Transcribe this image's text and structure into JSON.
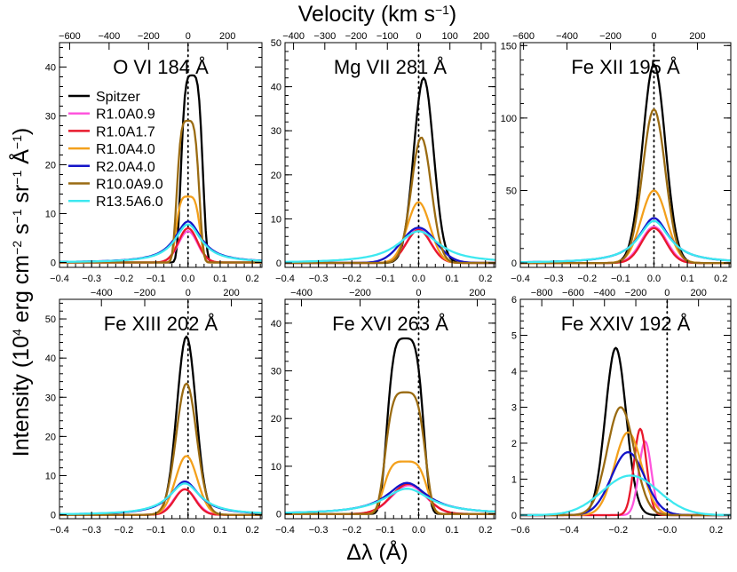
{
  "labels": {
    "top_title": "Velocity (km s",
    "top_title_sup": "−1",
    "top_title_end": ")",
    "ylabel_pre": "Intensity (10",
    "ylabel_sup1": "4",
    "ylabel_mid1": " erg cm",
    "ylabel_sup2": "−2",
    "ylabel_mid2": " s",
    "ylabel_sup3": "−1",
    "ylabel_mid3": " sr",
    "ylabel_sup4": "−1",
    "ylabel_mid4": " Å",
    "ylabel_sup5": "−1",
    "ylabel_end": ")",
    "xlabel": "Δλ (Å)"
  },
  "legend": [
    {
      "name": "Spitzer",
      "color": "#000000"
    },
    {
      "name": "R1.0A0.9",
      "color": "#ff55dd"
    },
    {
      "name": "R1.0A1.7",
      "color": "#e8192c"
    },
    {
      "name": "R1.0A4.0",
      "color": "#f3a01c"
    },
    {
      "name": "R2.0A4.0",
      "color": "#1414c8"
    },
    {
      "name": "R10.0A9.0",
      "color": "#9a6b12"
    },
    {
      "name": "R13.5A6.0",
      "color": "#3de8f0"
    }
  ],
  "chart_data": [
    {
      "type": "line",
      "title": "O VI 184 Å",
      "xlim": [
        -0.4,
        0.23
      ],
      "ylim": [
        -1,
        45
      ],
      "xticks": [
        -0.4,
        -0.3,
        -0.2,
        -0.1,
        0.0,
        0.1,
        0.2
      ],
      "xtick_labels": [
        "−0.4",
        "−0.3",
        "−0.2",
        "−0.1",
        "0.0",
        "0.1",
        "0.2"
      ],
      "yticks": [
        0,
        10,
        20,
        30,
        40
      ],
      "ytick_labels": [
        "0",
        "10",
        "20",
        "30",
        "40"
      ],
      "vel_ticks": [
        -600,
        -400,
        -200,
        0,
        200
      ],
      "vel_tick_labels": [
        "−600",
        "−400",
        "−200",
        "0",
        "200"
      ],
      "lambda0": 184.1,
      "profiles": [
        {
          "name": "Spitzer",
          "color": "#000000",
          "type": "flat",
          "center": 0.012,
          "height": 38.3,
          "fwhm": 0.068
        },
        {
          "name": "R1.0A0.9",
          "color": "#ff55dd",
          "type": "gauss",
          "center": 0.0,
          "height": 6.4,
          "fwhm": 0.07
        },
        {
          "name": "R1.0A1.7",
          "color": "#e8192c",
          "type": "gauss",
          "center": 0.0,
          "height": 7.0,
          "fwhm": 0.07
        },
        {
          "name": "R1.0A4.0",
          "color": "#f3a01c",
          "type": "flat",
          "center": 0.0,
          "height": 13.5,
          "fwhm": 0.075
        },
        {
          "name": "R2.0A4.0",
          "color": "#1414c8",
          "type": "lorentz",
          "center": 0.0,
          "height": 8.4,
          "fwhm": 0.1
        },
        {
          "name": "R10.0A9.0",
          "color": "#9a6b12",
          "type": "flat",
          "center": 0.0,
          "height": 29.0,
          "fwhm": 0.07
        },
        {
          "name": "R13.5A6.0",
          "color": "#3de8f0",
          "type": "lorentz",
          "center": 0.0,
          "height": 7.8,
          "fwhm": 0.1
        }
      ]
    },
    {
      "type": "line",
      "title": "Mg VII 281 Å",
      "xlim": [
        -0.4,
        0.23
      ],
      "ylim": [
        -1,
        50
      ],
      "xticks": [
        -0.4,
        -0.3,
        -0.2,
        -0.1,
        0.0,
        0.1,
        0.2
      ],
      "xtick_labels": [
        "−0.4",
        "−0.3",
        "−0.2",
        "−0.1",
        "0.0",
        "0.1",
        "0.2"
      ],
      "yticks": [
        0,
        10,
        20,
        30,
        40,
        50
      ],
      "ytick_labels": [
        "0",
        "10",
        "20",
        "30",
        "40",
        "50"
      ],
      "vel_ticks": [
        -400,
        -300,
        -200,
        -100,
        0,
        100,
        200
      ],
      "vel_tick_labels": [
        "−400",
        "−300",
        "−200",
        "−100",
        "0",
        "100",
        "200"
      ],
      "lambda0": 280.7,
      "profiles": [
        {
          "name": "Spitzer",
          "color": "#000000",
          "type": "gauss",
          "center": 0.015,
          "height": 42.0,
          "fwhm": 0.07
        },
        {
          "name": "R1.0A0.9",
          "color": "#ff55dd",
          "type": "gauss",
          "center": 0.0,
          "height": 7.8,
          "fwhm": 0.085
        },
        {
          "name": "R1.0A1.7",
          "color": "#e8192c",
          "type": "gauss",
          "center": 0.0,
          "height": 7.5,
          "fwhm": 0.085
        },
        {
          "name": "R1.0A4.0",
          "color": "#f3a01c",
          "type": "gauss",
          "center": 0.0,
          "height": 13.8,
          "fwhm": 0.08
        },
        {
          "name": "R2.0A4.0",
          "color": "#1414c8",
          "type": "gauss",
          "center": 0.0,
          "height": 8.0,
          "fwhm": 0.12
        },
        {
          "name": "R10.0A9.0",
          "color": "#9a6b12",
          "type": "gauss",
          "center": 0.008,
          "height": 28.5,
          "fwhm": 0.07
        },
        {
          "name": "R13.5A6.0",
          "color": "#3de8f0",
          "type": "lorentz",
          "center": 0.0,
          "height": 7.2,
          "fwhm": 0.15
        }
      ]
    },
    {
      "type": "line",
      "title": "Fe XII 195 Å",
      "xlim": [
        -0.4,
        0.23
      ],
      "ylim": [
        -3,
        152
      ],
      "xticks": [
        -0.4,
        -0.3,
        -0.2,
        -0.1,
        0.0,
        0.1,
        0.2
      ],
      "xtick_labels": [
        "−0.4",
        "−0.3",
        "−0.2",
        "−0.1",
        "0.0",
        "0.1",
        "0.2"
      ],
      "yticks": [
        0,
        50,
        100,
        150
      ],
      "ytick_labels": [
        "0",
        "50",
        "100",
        "150"
      ],
      "vel_ticks": [
        -600,
        -400,
        -200,
        0,
        200
      ],
      "vel_tick_labels": [
        "−600",
        "−400",
        "−200",
        "0",
        "200"
      ],
      "lambda0": 195.1,
      "profiles": [
        {
          "name": "Spitzer",
          "color": "#000000",
          "type": "gauss",
          "center": 0.0,
          "height": 137.0,
          "fwhm": 0.08
        },
        {
          "name": "R1.0A0.9",
          "color": "#ff55dd",
          "type": "gauss",
          "center": 0.0,
          "height": 25.0,
          "fwhm": 0.09
        },
        {
          "name": "R1.0A1.7",
          "color": "#e8192c",
          "type": "gauss",
          "center": 0.0,
          "height": 24.0,
          "fwhm": 0.085
        },
        {
          "name": "R1.0A4.0",
          "color": "#f3a01c",
          "type": "gauss",
          "center": 0.0,
          "height": 50.0,
          "fwhm": 0.09
        },
        {
          "name": "R2.0A4.0",
          "color": "#1414c8",
          "type": "lorentz",
          "center": 0.0,
          "height": 31.0,
          "fwhm": 0.11
        },
        {
          "name": "R10.0A9.0",
          "color": "#9a6b12",
          "type": "gauss",
          "center": 0.0,
          "height": 106.0,
          "fwhm": 0.08
        },
        {
          "name": "R13.5A6.0",
          "color": "#3de8f0",
          "type": "lorentz",
          "center": 0.0,
          "height": 29.0,
          "fwhm": 0.115
        }
      ]
    },
    {
      "type": "line",
      "title": "Fe XIII 202 Å",
      "xlim": [
        -0.4,
        0.23
      ],
      "ylim": [
        -1,
        55
      ],
      "xticks": [
        -0.4,
        -0.3,
        -0.2,
        -0.1,
        0.0,
        0.1,
        0.2
      ],
      "xtick_labels": [
        "−0.4",
        "−0.3",
        "−0.2",
        "−0.1",
        "0.0",
        "0.1",
        "0.2"
      ],
      "yticks": [
        0,
        10,
        20,
        30,
        40,
        50
      ],
      "ytick_labels": [
        "0",
        "10",
        "20",
        "30",
        "40",
        "50"
      ],
      "vel_ticks": [
        -400,
        -200,
        0,
        200
      ],
      "vel_tick_labels": [
        "−400",
        "−200",
        "0",
        "200"
      ],
      "lambda0": 202.0,
      "profiles": [
        {
          "name": "Spitzer",
          "color": "#000000",
          "type": "gauss",
          "center": -0.005,
          "height": 45.5,
          "fwhm": 0.07
        },
        {
          "name": "R1.0A0.9",
          "color": "#ff55dd",
          "type": "gauss",
          "center": -0.01,
          "height": 6.5,
          "fwhm": 0.08
        },
        {
          "name": "R1.0A1.7",
          "color": "#e8192c",
          "type": "gauss",
          "center": -0.01,
          "height": 6.5,
          "fwhm": 0.075
        },
        {
          "name": "R1.0A4.0",
          "color": "#f3a01c",
          "type": "gauss",
          "center": -0.005,
          "height": 15.0,
          "fwhm": 0.08
        },
        {
          "name": "R2.0A4.0",
          "color": "#1414c8",
          "type": "lorentz",
          "center": -0.01,
          "height": 8.5,
          "fwhm": 0.11
        },
        {
          "name": "R10.0A9.0",
          "color": "#9a6b12",
          "type": "gauss",
          "center": -0.005,
          "height": 33.5,
          "fwhm": 0.075
        },
        {
          "name": "R13.5A6.0",
          "color": "#3de8f0",
          "type": "lorentz",
          "center": -0.01,
          "height": 8.0,
          "fwhm": 0.12
        }
      ]
    },
    {
      "type": "line",
      "title": "Fe XVI 263 Å",
      "xlim": [
        -0.4,
        0.23
      ],
      "ylim": [
        -1,
        45
      ],
      "xticks": [
        -0.4,
        -0.3,
        -0.2,
        -0.1,
        0.0,
        0.1,
        0.2
      ],
      "xtick_labels": [
        "−0.4",
        "−0.3",
        "−0.2",
        "−0.1",
        "0.0",
        "0.1",
        "0.2"
      ],
      "yticks": [
        0,
        10,
        20,
        30,
        40
      ],
      "ytick_labels": [
        "0",
        "10",
        "20",
        "30",
        "40"
      ],
      "vel_ticks": [
        -400,
        -200,
        0,
        200
      ],
      "vel_tick_labels": [
        "−400",
        "−200",
        "0",
        "200"
      ],
      "lambda0": 262.98,
      "profiles": [
        {
          "name": "Spitzer",
          "color": "#000000",
          "type": "flat",
          "center": -0.04,
          "height": 36.8,
          "fwhm": 0.11
        },
        {
          "name": "R1.0A0.9",
          "color": "#ff55dd",
          "type": "gauss",
          "center": -0.03,
          "height": 6.0,
          "fwhm": 0.12
        },
        {
          "name": "R1.0A1.7",
          "color": "#e8192c",
          "type": "gauss",
          "center": -0.03,
          "height": 6.3,
          "fwhm": 0.12
        },
        {
          "name": "R1.0A4.0",
          "color": "#f3a01c",
          "type": "flat",
          "center": -0.04,
          "height": 11.0,
          "fwhm": 0.13
        },
        {
          "name": "R2.0A4.0",
          "color": "#1414c8",
          "type": "lorentz",
          "center": -0.035,
          "height": 6.5,
          "fwhm": 0.15
        },
        {
          "name": "R10.0A9.0",
          "color": "#9a6b12",
          "type": "flat",
          "center": -0.04,
          "height": 25.5,
          "fwhm": 0.12
        },
        {
          "name": "R13.5A6.0",
          "color": "#3de8f0",
          "type": "lorentz",
          "center": -0.035,
          "height": 5.3,
          "fwhm": 0.17
        }
      ]
    },
    {
      "type": "line",
      "title": "Fe XXIV 192 Å",
      "xlim": [
        -0.6,
        0.26
      ],
      "ylim": [
        -0.1,
        6.0
      ],
      "xticks": [
        -0.6,
        -0.4,
        -0.2,
        0.0,
        0.2
      ],
      "xtick_labels": [
        "−0.6",
        "−0.4",
        "−0.2",
        "−0.0",
        "0.2"
      ],
      "yticks": [
        0,
        1,
        2,
        3,
        4,
        5,
        6
      ],
      "ytick_labels": [
        "0",
        "1",
        "2",
        "3",
        "4",
        "5",
        "6"
      ],
      "vel_ticks": [
        -800,
        -600,
        -400,
        -200,
        0,
        200
      ],
      "vel_tick_labels": [
        "−800",
        "−600",
        "−400",
        "−200",
        "0",
        "200"
      ],
      "lambda0": 192.03,
      "profiles": [
        {
          "name": "Spitzer",
          "color": "#000000",
          "type": "gauss",
          "center": -0.21,
          "height": 4.65,
          "fwhm": 0.1
        },
        {
          "name": "R1.0A0.9",
          "color": "#ff55dd",
          "type": "gauss",
          "center": -0.09,
          "height": 2.05,
          "fwhm": 0.06
        },
        {
          "name": "R1.0A1.7",
          "color": "#e8192c",
          "type": "gauss",
          "center": -0.11,
          "height": 2.4,
          "fwhm": 0.06
        },
        {
          "name": "R1.0A4.0",
          "color": "#f3a01c",
          "type": "gauss",
          "center": -0.16,
          "height": 2.3,
          "fwhm": 0.13
        },
        {
          "name": "R2.0A4.0",
          "color": "#1414c8",
          "type": "gauss",
          "center": -0.16,
          "height": 1.75,
          "fwhm": 0.16
        },
        {
          "name": "R10.0A9.0",
          "color": "#9a6b12",
          "type": "gauss",
          "center": -0.19,
          "height": 3.0,
          "fwhm": 0.13
        },
        {
          "name": "R13.5A6.0",
          "color": "#3de8f0",
          "type": "gauss",
          "center": -0.15,
          "height": 1.1,
          "fwhm": 0.27
        }
      ]
    }
  ]
}
